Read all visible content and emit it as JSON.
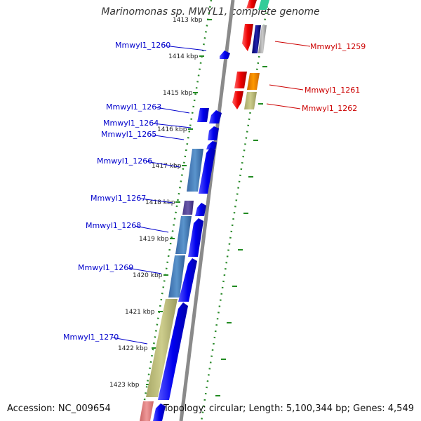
{
  "title": "Marinomonas sp. MWYL1, complete genome",
  "accession": "Accession: NC_009654",
  "topology": "Topology: circular; Length: 5,100,344 bp; Genes: 4,549",
  "colors": {
    "forward_label": "#0000cc",
    "reverse_label": "#cc0000",
    "forward_cds": "#0000ee",
    "reverse_cds": "#ee0000",
    "backbone": "#808080",
    "tick": "#228b22"
  },
  "ticks": [
    "1413 kbp",
    "1414 kbp",
    "1415 kbp",
    "1416 kbp",
    "1417 kbp",
    "1418 kbp",
    "1419 kbp",
    "1420 kbp",
    "1421 kbp",
    "1422 kbp",
    "1423 kbp"
  ],
  "genes_left": [
    "Mmwyl1_1260",
    "Mmwyl1_1263",
    "Mmwyl1_1264",
    "Mmwyl1_1265",
    "Mmwyl1_1266",
    "Mmwyl1_1267",
    "Mmwyl1_1268",
    "Mmwyl1_1269",
    "Mmwyl1_1270"
  ],
  "genes_right": [
    "Mmwyl1_1259",
    "Mmwyl1_1261",
    "Mmwyl1_1262"
  ]
}
